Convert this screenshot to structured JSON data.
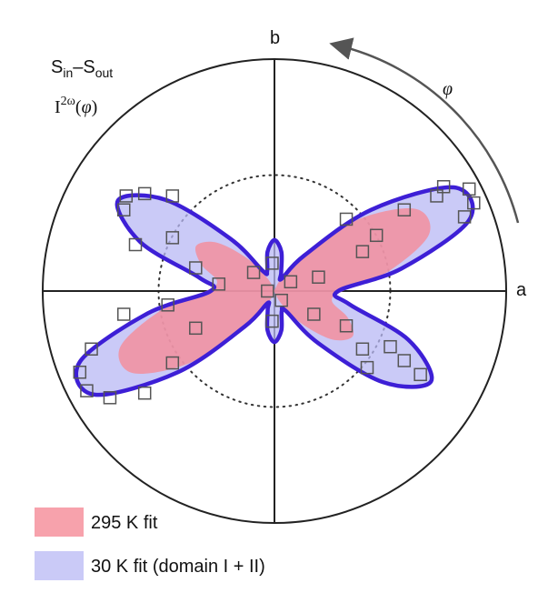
{
  "chart_data": {
    "type": "polar",
    "annotation_1": [
      "S",
      "in",
      "–S",
      "out"
    ],
    "annotation_2": [
      "I",
      "2ω",
      "(",
      "φ",
      ")"
    ],
    "x_axis_label": "a",
    "y_axis_label": "b",
    "direction_label": "φ",
    "rlim": [
      0,
      1
    ],
    "reference_circle": 0.5,
    "theta": [
      0,
      10,
      20,
      30,
      40,
      50,
      60,
      70,
      80,
      90,
      100,
      110,
      120,
      130,
      140,
      150,
      160,
      170,
      180,
      190,
      200,
      210,
      220,
      230,
      240,
      250,
      260,
      270,
      280,
      290,
      300,
      310,
      320,
      330,
      340,
      350
    ],
    "series": [
      {
        "name": "295 K fit",
        "color": "#f58b97",
        "values": [
          0.296,
          0.504,
          0.709,
          0.707,
          0.488,
          0.227,
          0.067,
          0.012,
          0.001,
          0,
          0.002,
          0.016,
          0.069,
          0.185,
          0.325,
          0.39,
          0.337,
          0.252,
          0.296,
          0.504,
          0.709,
          0.707,
          0.488,
          0.227,
          0.067,
          0.012,
          0.001,
          0,
          0.002,
          0.016,
          0.069,
          0.185,
          0.325,
          0.39,
          0.337,
          0.252
        ]
      },
      {
        "name": "30 K fit (domain I + II)",
        "color": "#b8b8f4",
        "line_color": "#3d1fd6",
        "values": [
          0.275,
          0.556,
          0.894,
          0.894,
          0.545,
          0.2,
          0.061,
          0.085,
          0.172,
          0.22,
          0.172,
          0.092,
          0.1,
          0.292,
          0.611,
          0.78,
          0.615,
          0.328,
          0.275,
          0.556,
          0.894,
          0.894,
          0.545,
          0.2,
          0.061,
          0.085,
          0.172,
          0.22,
          0.172,
          0.092,
          0.1,
          0.292,
          0.611,
          0.78,
          0.615,
          0.328
        ]
      }
    ],
    "points": {
      "color": "#555555",
      "x": [
        0.73,
        0.84,
        0.86,
        0.82,
        0.7,
        0.56,
        0.44,
        0.31,
        0.38,
        0.19,
        0.07,
        -0.64,
        -0.56,
        -0.44,
        -0.65,
        -0.6,
        -0.44,
        -0.34,
        -0.24,
        -0.09,
        -0.79,
        -0.65,
        -0.84,
        -0.81,
        -0.71,
        -0.56,
        -0.44,
        -0.46,
        -0.34,
        0.17,
        0.31,
        0.38,
        0.5,
        0.4,
        0.56,
        0.63,
        -0.01,
        -0.01,
        -0.03,
        0.03
      ],
      "y": [
        0.45,
        0.44,
        0.38,
        0.32,
        0.41,
        0.35,
        0.24,
        0.31,
        0.17,
        0.06,
        0.04,
        0.41,
        0.42,
        0.41,
        0.35,
        0.2,
        0.23,
        0.1,
        0.03,
        0.08,
        -0.25,
        -0.1,
        -0.35,
        -0.43,
        -0.46,
        -0.44,
        -0.31,
        -0.06,
        -0.16,
        -0.1,
        -0.15,
        -0.25,
        -0.24,
        -0.33,
        -0.3,
        -0.36,
        -0.13,
        0.12,
        0.0,
        -0.04
      ]
    }
  }
}
